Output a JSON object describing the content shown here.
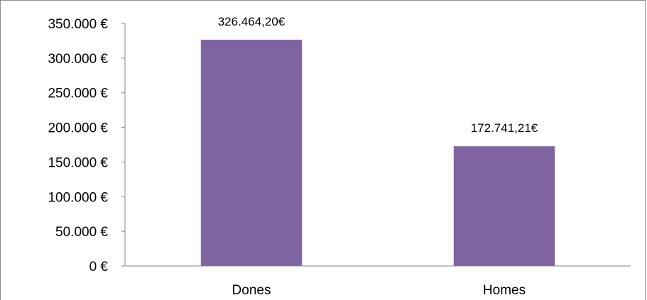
{
  "chart_data": {
    "type": "bar",
    "categories": [
      "Dones",
      "Homes"
    ],
    "values": [
      326464.2,
      172741.21
    ],
    "data_labels": [
      "326.464,20€",
      "172.741,21€"
    ],
    "y_ticks": [
      0,
      50000,
      100000,
      150000,
      200000,
      250000,
      300000,
      350000
    ],
    "y_tick_labels": [
      "0 €",
      "50.000 €",
      "100.000 €",
      "150.000 €",
      "200.000 €",
      "250.000 €",
      "300.000 €",
      "350.000 €"
    ],
    "ylim": [
      0,
      350000
    ],
    "grid": false,
    "legend": "none",
    "bar_color": "#8064a2",
    "axis_color": "#868686",
    "title": "",
    "xlabel": "",
    "ylabel": ""
  }
}
